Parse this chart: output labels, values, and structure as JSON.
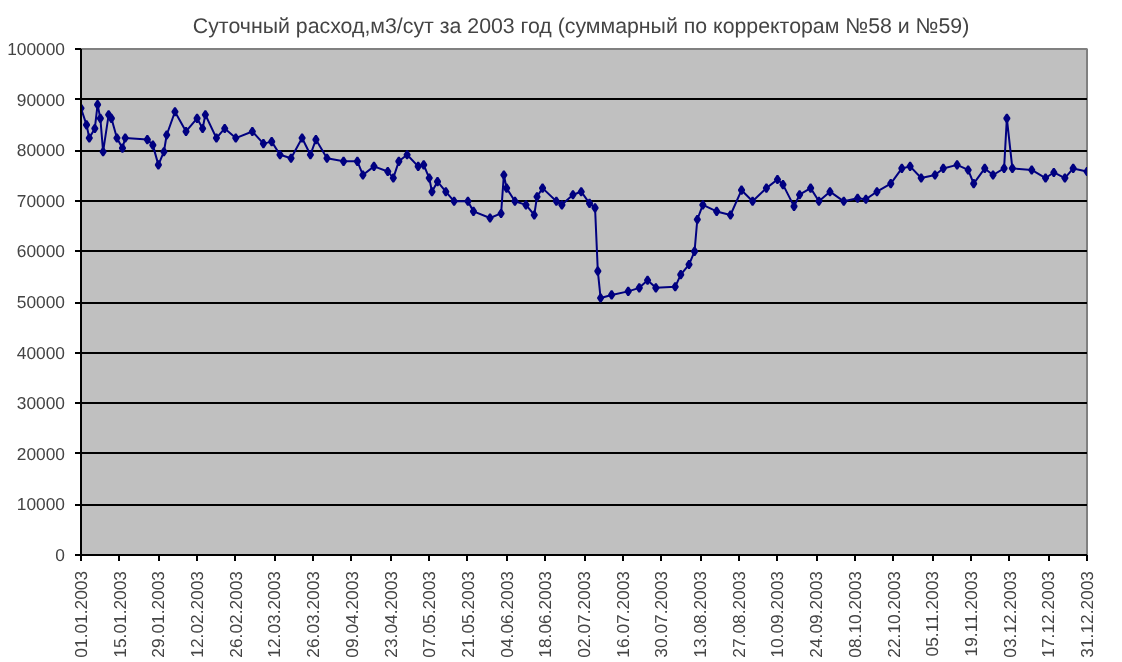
{
  "chart_data": {
    "type": "line",
    "title": "Суточный расход,м3/сут  за 2003 год (суммарный по корректорам №58 и №59)",
    "x": [
      "2003-01-01",
      "2003-01-03",
      "2003-01-04",
      "2003-01-06",
      "2003-01-07",
      "2003-01-08",
      "2003-01-09",
      "2003-01-11",
      "2003-01-12",
      "2003-01-14",
      "2003-01-16",
      "2003-01-17",
      "2003-01-25",
      "2003-01-27",
      "2003-01-29",
      "2003-01-31",
      "2003-02-01",
      "2003-02-04",
      "2003-02-08",
      "2003-02-12",
      "2003-02-14",
      "2003-02-15",
      "2003-02-19",
      "2003-02-22",
      "2003-02-26",
      "2003-03-04",
      "2003-03-08",
      "2003-03-11",
      "2003-03-14",
      "2003-03-18",
      "2003-03-22",
      "2003-03-25",
      "2003-03-27",
      "2003-03-31",
      "2003-04-06",
      "2003-04-11",
      "2003-04-13",
      "2003-04-17",
      "2003-04-22",
      "2003-04-24",
      "2003-04-26",
      "2003-04-29",
      "2003-05-03",
      "2003-05-05",
      "2003-05-07",
      "2003-05-08",
      "2003-05-10",
      "2003-05-13",
      "2003-05-16",
      "2003-05-21",
      "2003-05-23",
      "2003-05-29",
      "2003-06-02",
      "2003-06-03",
      "2003-06-04",
      "2003-06-07",
      "2003-06-11",
      "2003-06-14",
      "2003-06-15",
      "2003-06-17",
      "2003-06-22",
      "2003-06-24",
      "2003-06-28",
      "2003-07-01",
      "2003-07-04",
      "2003-07-06",
      "2003-07-07",
      "2003-07-08",
      "2003-07-12",
      "2003-07-18",
      "2003-07-22",
      "2003-07-25",
      "2003-07-28",
      "2003-08-04",
      "2003-08-06",
      "2003-08-09",
      "2003-08-11",
      "2003-08-12",
      "2003-08-14",
      "2003-08-19",
      "2003-08-24",
      "2003-08-28",
      "2003-09-01",
      "2003-09-06",
      "2003-09-10",
      "2003-09-12",
      "2003-09-16",
      "2003-09-18",
      "2003-09-22",
      "2003-09-25",
      "2003-09-29",
      "2003-10-04",
      "2003-10-09",
      "2003-10-12",
      "2003-10-16",
      "2003-10-21",
      "2003-10-25",
      "2003-10-28",
      "2003-11-01",
      "2003-11-06",
      "2003-11-09",
      "2003-11-14",
      "2003-11-18",
      "2003-11-20",
      "2003-11-24",
      "2003-11-27",
      "2003-12-01",
      "2003-12-02",
      "2003-12-04",
      "2003-12-11",
      "2003-12-16",
      "2003-12-19",
      "2003-12-23",
      "2003-12-26",
      "2003-12-31"
    ],
    "series": [
      {
        "color": "#000080",
        "values": [
          88300,
          85000,
          82400,
          84300,
          89000,
          86300,
          79700,
          87000,
          86300,
          82400,
          80400,
          82400,
          82100,
          81000,
          77100,
          79700,
          83000,
          87600,
          83700,
          86300,
          84300,
          87000,
          82400,
          84300,
          82400,
          83700,
          81300,
          81700,
          79100,
          78400,
          82400,
          79100,
          82100,
          78400,
          77800,
          77800,
          75100,
          76800,
          75800,
          74500,
          77800,
          79100,
          76800,
          77100,
          74500,
          71800,
          73800,
          71800,
          69900,
          69900,
          67900,
          66600,
          67500,
          75100,
          72500,
          69900,
          69200,
          67200,
          70800,
          72500,
          69900,
          69200,
          71200,
          71800,
          69500,
          68600,
          56100,
          50800,
          51400,
          52100,
          52800,
          54300,
          52800,
          53000,
          55400,
          57400,
          60000,
          66300,
          69200,
          67900,
          67200,
          72100,
          69900,
          72500,
          74200,
          73200,
          68900,
          71200,
          72500,
          69900,
          71800,
          69900,
          70500,
          70300,
          71800,
          73400,
          76400,
          76800,
          74500,
          75100,
          76400,
          77100,
          76100,
          73400,
          76400,
          75100,
          76400,
          86300,
          76400,
          76100,
          74500,
          75600,
          74500,
          76400,
          75800
        ]
      }
    ],
    "xlim": [
      "2003-01-01",
      "2003-12-31"
    ],
    "xticks": [
      {
        "value": "2003-01-01",
        "label": "01.01.2003"
      },
      {
        "value": "2003-01-15",
        "label": "15.01.2003"
      },
      {
        "value": "2003-01-29",
        "label": "29.01.2003"
      },
      {
        "value": "2003-02-12",
        "label": "12.02.2003"
      },
      {
        "value": "2003-02-26",
        "label": "26.02.2003"
      },
      {
        "value": "2003-03-12",
        "label": "12.03.2003"
      },
      {
        "value": "2003-03-26",
        "label": "26.03.2003"
      },
      {
        "value": "2003-04-09",
        "label": "09.04.2003"
      },
      {
        "value": "2003-04-23",
        "label": "23.04.2003"
      },
      {
        "value": "2003-05-07",
        "label": "07.05.2003"
      },
      {
        "value": "2003-05-21",
        "label": "21.05.2003"
      },
      {
        "value": "2003-06-04",
        "label": "04.06.2003"
      },
      {
        "value": "2003-06-18",
        "label": "18.06.2003"
      },
      {
        "value": "2003-07-02",
        "label": "02.07.2003"
      },
      {
        "value": "2003-07-16",
        "label": "16.07.2003"
      },
      {
        "value": "2003-07-30",
        "label": "30.07.2003"
      },
      {
        "value": "2003-08-13",
        "label": "13.08.2003"
      },
      {
        "value": "2003-08-27",
        "label": "27.08.2003"
      },
      {
        "value": "2003-09-10",
        "label": "10.09.2003"
      },
      {
        "value": "2003-09-24",
        "label": "24.09.2003"
      },
      {
        "value": "2003-10-08",
        "label": "08.10.2003"
      },
      {
        "value": "2003-10-22",
        "label": "22.10.2003"
      },
      {
        "value": "2003-11-05",
        "label": "05.11.2003"
      },
      {
        "value": "2003-11-19",
        "label": "19.11.2003"
      },
      {
        "value": "2003-12-03",
        "label": "03.12.2003"
      },
      {
        "value": "2003-12-17",
        "label": "17.12.2003"
      },
      {
        "value": "2003-12-31",
        "label": "31.12.2003"
      }
    ],
    "ylim": [
      0,
      100000
    ],
    "yticks": [
      0,
      10000,
      20000,
      30000,
      40000,
      50000,
      60000,
      70000,
      80000,
      90000,
      100000
    ],
    "grid": "y",
    "marker": "diamond",
    "line_style": "solid"
  }
}
